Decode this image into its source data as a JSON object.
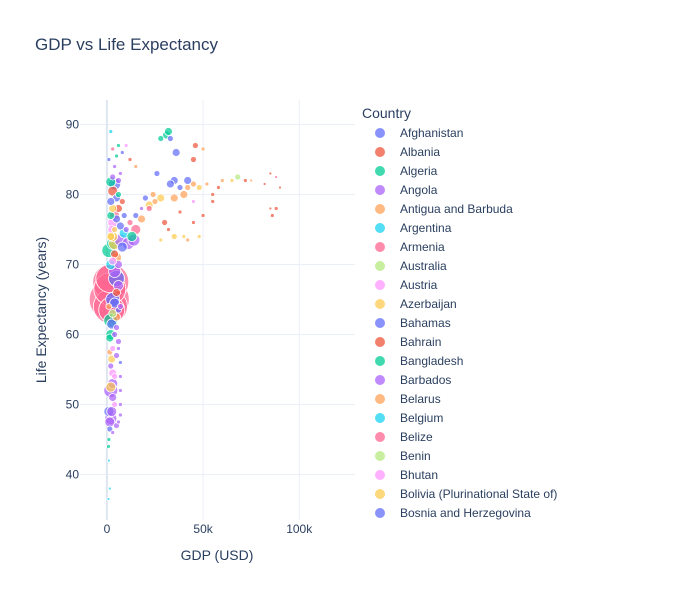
{
  "chart_data": {
    "type": "scatter",
    "title": "GDP vs Life Expectancy",
    "xlabel": "GDP (USD)",
    "ylabel": "Life Expectancy (years)",
    "xlim": [
      -14000,
      129000
    ],
    "ylim": [
      33.5,
      93.5
    ],
    "x_ticks": [
      0,
      50000,
      100000
    ],
    "x_tick_labels": [
      "0",
      "50k",
      "100k"
    ],
    "y_ticks": [
      40,
      50,
      60,
      70,
      80,
      90
    ],
    "y_tick_labels": [
      "40",
      "50",
      "60",
      "70",
      "80",
      "90"
    ],
    "grid": true,
    "legend": {
      "title": "Country",
      "placement": "right",
      "entries": [
        {
          "name": "Afghanistan",
          "color": "#636efa"
        },
        {
          "name": "Albania",
          "color": "#EF553B"
        },
        {
          "name": "Algeria",
          "color": "#00cc96"
        },
        {
          "name": "Angola",
          "color": "#ab63fa"
        },
        {
          "name": "Antigua and Barbuda",
          "color": "#FFA15A"
        },
        {
          "name": "Argentina",
          "color": "#19d3f3"
        },
        {
          "name": "Armenia",
          "color": "#FF6692"
        },
        {
          "name": "Australia",
          "color": "#B6E880"
        },
        {
          "name": "Austria",
          "color": "#FF97FF"
        },
        {
          "name": "Azerbaijan",
          "color": "#FECB52"
        },
        {
          "name": "Bahamas",
          "color": "#636efa"
        },
        {
          "name": "Bahrain",
          "color": "#EF553B"
        },
        {
          "name": "Bangladesh",
          "color": "#00cc96"
        },
        {
          "name": "Barbados",
          "color": "#ab63fa"
        },
        {
          "name": "Belarus",
          "color": "#FFA15A"
        },
        {
          "name": "Belgium",
          "color": "#19d3f3"
        },
        {
          "name": "Belize",
          "color": "#FF6692"
        },
        {
          "name": "Benin",
          "color": "#B6E880"
        },
        {
          "name": "Bhutan",
          "color": "#FF97FF"
        },
        {
          "name": "Bolivia (Plurinational State of)",
          "color": "#FECB52"
        },
        {
          "name": "Bosnia and Herzegovina",
          "color": "#636efa"
        }
      ]
    },
    "points": [
      [
        2000,
        67.5,
        18,
        6
      ],
      [
        1500,
        66.5,
        16,
        6
      ],
      [
        1200,
        65,
        20,
        6
      ],
      [
        1800,
        64,
        17,
        6
      ],
      [
        1500,
        68,
        14,
        6
      ],
      [
        2500,
        63.5,
        13,
        6
      ],
      [
        1000,
        72,
        7,
        12
      ],
      [
        3000,
        73,
        6,
        12
      ],
      [
        2000,
        62,
        7,
        12
      ],
      [
        2500,
        61.5,
        5,
        0
      ],
      [
        1500,
        59.5,
        4,
        12
      ],
      [
        2000,
        60,
        5,
        2
      ],
      [
        5000,
        68,
        8,
        0
      ],
      [
        4000,
        69,
        6,
        3
      ],
      [
        3000,
        65,
        7,
        10
      ],
      [
        6000,
        67,
        5,
        3
      ],
      [
        2000,
        52,
        7,
        3
      ],
      [
        3000,
        53,
        5,
        13
      ],
      [
        2000,
        48,
        6,
        3
      ],
      [
        1500,
        47.5,
        5,
        13
      ],
      [
        1000,
        49,
        5,
        0
      ],
      [
        2500,
        49,
        5,
        13
      ],
      [
        3000,
        54.5,
        4,
        8
      ],
      [
        2500,
        56.5,
        4,
        9
      ],
      [
        1500,
        57.5,
        3,
        4
      ],
      [
        2000,
        55.5,
        3,
        13
      ],
      [
        4000,
        54,
        3,
        8
      ],
      [
        3000,
        51,
        4,
        3
      ],
      [
        1000,
        45,
        2,
        2
      ],
      [
        800,
        44,
        2,
        12
      ],
      [
        1000,
        42,
        1.5,
        15
      ],
      [
        800,
        36.5,
        1.5,
        15
      ],
      [
        1500,
        38,
        1.5,
        15
      ],
      [
        4000,
        81.5,
        6,
        0
      ],
      [
        3000,
        80.5,
        5,
        11
      ],
      [
        2000,
        81.8,
        5,
        12
      ],
      [
        5000,
        79.5,
        4,
        10
      ],
      [
        6000,
        78,
        4,
        1
      ],
      [
        4000,
        77,
        5,
        6
      ],
      [
        3000,
        76,
        5,
        8
      ],
      [
        2500,
        75,
        4,
        8
      ],
      [
        3000,
        74,
        5,
        9
      ],
      [
        4000,
        73,
        6,
        9
      ],
      [
        5000,
        71,
        5,
        4
      ],
      [
        6000,
        70,
        4,
        3
      ],
      [
        7000,
        73.5,
        6,
        3
      ],
      [
        8000,
        72.5,
        5,
        10
      ],
      [
        9000,
        74.5,
        5,
        5
      ],
      [
        11000,
        73,
        6,
        13
      ],
      [
        14000,
        73.5,
        6,
        13
      ],
      [
        15000,
        75,
        5,
        6
      ],
      [
        13000,
        74,
        5,
        2
      ],
      [
        18000,
        76.5,
        4,
        4
      ],
      [
        22000,
        78.5,
        4,
        9
      ],
      [
        25000,
        79,
        3,
        4
      ],
      [
        28000,
        79.5,
        4,
        9
      ],
      [
        35000,
        79.5,
        4,
        4
      ],
      [
        40000,
        80,
        4,
        4
      ],
      [
        42000,
        81,
        3,
        4
      ],
      [
        45000,
        81.5,
        3,
        4
      ],
      [
        48000,
        81,
        3,
        9
      ],
      [
        52000,
        81.5,
        2,
        4
      ],
      [
        55000,
        80,
        2,
        1
      ],
      [
        58000,
        81,
        2,
        1
      ],
      [
        60000,
        82,
        2,
        4
      ],
      [
        65000,
        82,
        2,
        9
      ],
      [
        68000,
        82.5,
        3,
        7
      ],
      [
        72000,
        82,
        2,
        1
      ],
      [
        75000,
        82,
        1.5,
        4
      ],
      [
        82000,
        81.5,
        1.5,
        1
      ],
      [
        85000,
        83,
        1.5,
        1
      ],
      [
        88000,
        82.5,
        1.5,
        6
      ],
      [
        90000,
        81,
        1.5,
        1
      ],
      [
        86000,
        77,
        2,
        1
      ],
      [
        88000,
        78,
        2,
        1
      ],
      [
        85000,
        78,
        1.5,
        1
      ],
      [
        35000,
        82,
        4,
        10
      ],
      [
        33000,
        81.5,
        4,
        0
      ],
      [
        38000,
        81,
        3,
        0
      ],
      [
        42000,
        82,
        4,
        0
      ],
      [
        28000,
        88,
        3,
        2
      ],
      [
        31000,
        88.5,
        4,
        12
      ],
      [
        32000,
        89,
        4,
        12
      ],
      [
        33000,
        88,
        3,
        10
      ],
      [
        36000,
        86,
        4,
        0
      ],
      [
        46000,
        87,
        3,
        1
      ],
      [
        45000,
        85,
        3,
        1
      ],
      [
        50000,
        86.5,
        2,
        4
      ],
      [
        12000,
        85,
        2,
        1
      ],
      [
        8000,
        86,
        2,
        10
      ],
      [
        10000,
        87,
        2,
        8
      ],
      [
        15000,
        84,
        2,
        4
      ],
      [
        26000,
        83,
        3,
        0
      ],
      [
        24000,
        80,
        3,
        4
      ],
      [
        20000,
        79.5,
        3,
        0
      ],
      [
        22000,
        78,
        3,
        6
      ],
      [
        30000,
        76,
        3,
        1
      ],
      [
        35000,
        74,
        3,
        9
      ],
      [
        40000,
        74,
        2,
        9
      ],
      [
        45000,
        76,
        2,
        1
      ],
      [
        50000,
        77,
        2,
        1
      ],
      [
        55000,
        79,
        2,
        1
      ],
      [
        45000,
        79,
        2,
        8
      ],
      [
        38000,
        77.5,
        2,
        1
      ],
      [
        32000,
        75,
        2,
        1
      ],
      [
        28000,
        73.5,
        2,
        9
      ],
      [
        42000,
        73.5,
        2,
        4
      ],
      [
        48000,
        74,
        2,
        9
      ],
      [
        18000,
        78,
        2,
        3
      ],
      [
        15000,
        77,
        3,
        0
      ],
      [
        12000,
        76,
        3,
        6
      ],
      [
        10000,
        75,
        3,
        13
      ],
      [
        9000,
        77,
        3,
        0
      ],
      [
        8000,
        79,
        3,
        11
      ],
      [
        6000,
        80,
        3,
        12
      ],
      [
        7000,
        83,
        2,
        3
      ],
      [
        4000,
        84,
        2,
        13
      ],
      [
        5000,
        85.5,
        2,
        2
      ],
      [
        3000,
        86.5,
        2,
        6
      ],
      [
        6000,
        87,
        2,
        12
      ],
      [
        2000,
        89,
        2,
        15
      ],
      [
        1000,
        85,
        2,
        0
      ],
      [
        3000,
        82.5,
        3,
        13
      ],
      [
        6000,
        82,
        3,
        3
      ],
      [
        5000,
        76.5,
        4,
        10
      ],
      [
        7000,
        75.5,
        4,
        10
      ],
      [
        4000,
        71.5,
        4,
        11
      ],
      [
        3000,
        70.5,
        4,
        8
      ],
      [
        2000,
        70,
        5,
        5
      ],
      [
        5000,
        66,
        4,
        11
      ],
      [
        4000,
        64.5,
        5,
        0
      ],
      [
        5000,
        62.5,
        4,
        4
      ],
      [
        3000,
        63,
        4,
        7
      ],
      [
        4000,
        60,
        3,
        13
      ],
      [
        3000,
        58,
        3,
        8
      ],
      [
        5000,
        57,
        3,
        13
      ],
      [
        6000,
        59,
        3,
        3
      ],
      [
        5000,
        61,
        3,
        3
      ],
      [
        6000,
        63.5,
        3,
        0
      ],
      [
        7000,
        64,
        3,
        13
      ],
      [
        6000,
        58,
        2,
        3
      ],
      [
        7000,
        56,
        2,
        0
      ],
      [
        7000,
        54,
        2,
        13
      ],
      [
        7000,
        52,
        2,
        3
      ],
      [
        7000,
        50,
        2,
        13
      ],
      [
        7000,
        48.5,
        2,
        13
      ],
      [
        6000,
        47.5,
        2,
        3
      ],
      [
        3000,
        46,
        2,
        13
      ],
      [
        4000,
        50,
        3,
        8
      ],
      [
        5000,
        47,
        3,
        13
      ],
      [
        1500,
        46.5,
        3,
        0
      ],
      [
        2000,
        52.5,
        5,
        9
      ],
      [
        1000,
        64,
        3,
        14
      ],
      [
        2000,
        74,
        4,
        9
      ],
      [
        4000,
        75,
        3,
        9
      ],
      [
        2000,
        77,
        4,
        12
      ],
      [
        3000,
        78,
        4,
        9
      ],
      [
        2000,
        79,
        4,
        10
      ]
    ]
  }
}
